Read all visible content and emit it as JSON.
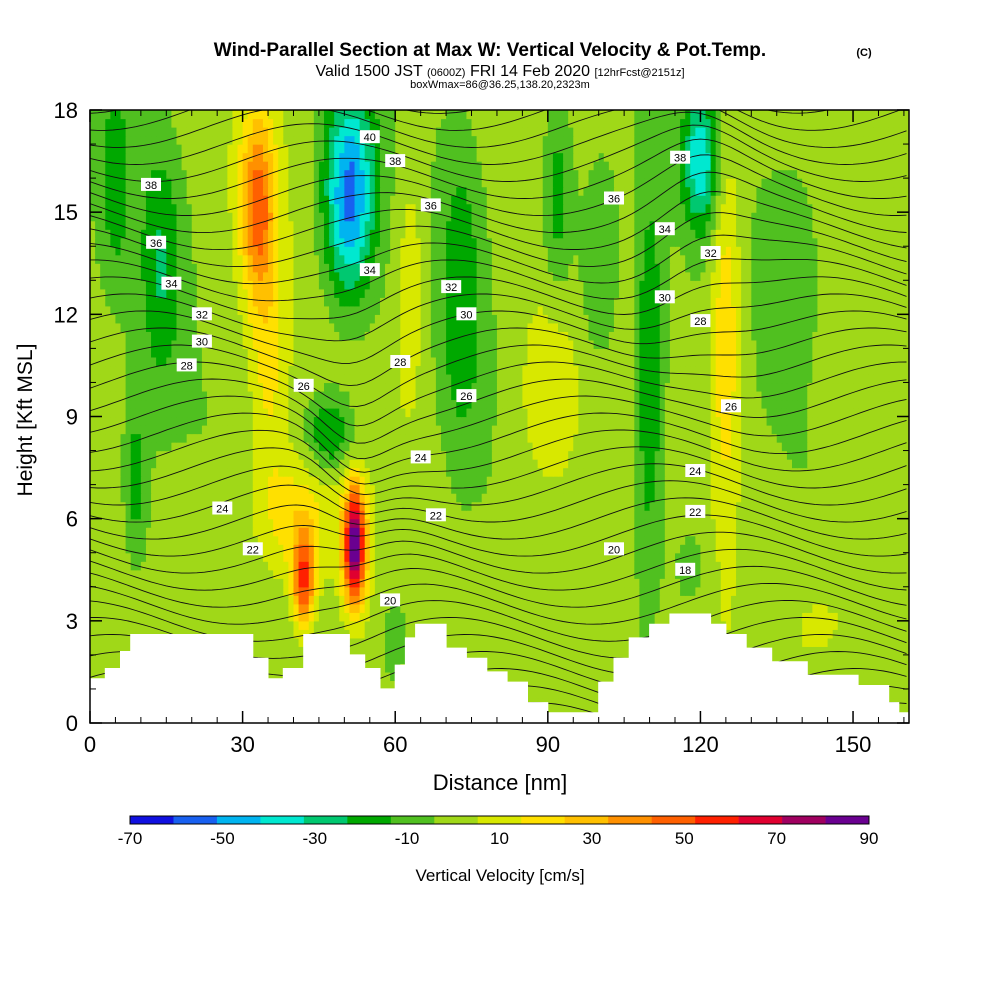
{
  "title": {
    "main": "Wind-Parallel Section at Max W: Vertical Velocity & Pot.Temp.",
    "copyright": "(C)",
    "valid_prefix": "Valid 1500 JST",
    "valid_utc": "(0600Z)",
    "valid_date": "FRI 14 Feb 2020",
    "forecast": "[12hrFcst@2151z]",
    "box": "boxWmax=86@36.25,138.20,2323m"
  },
  "colorbar": {
    "label": "Vertical Velocity [cm/s]",
    "tick_labels": [
      "-70",
      "-50",
      "-30",
      "-10",
      "10",
      "30",
      "50",
      "70",
      "90"
    ],
    "bounds": [
      -70,
      -60,
      -50,
      -40,
      -30,
      -20,
      -10,
      0,
      10,
      20,
      30,
      40,
      50,
      60,
      70,
      80,
      90
    ],
    "colors": [
      "#1010e0",
      "#1860f0",
      "#00b4f0",
      "#00e8d0",
      "#00c870",
      "#00a800",
      "#50c020",
      "#a0d818",
      "#d8e800",
      "#ffe000",
      "#ffc000",
      "#ff9000",
      "#ff6000",
      "#ff2000",
      "#e00030",
      "#a00060",
      "#6a0090"
    ]
  },
  "chart_data": {
    "type": "heatmap",
    "title": "Wind-Parallel Section at Max W: Vertical Velocity & Pot.Temp.",
    "xlabel": "Distance [nm]",
    "ylabel": "Height [Kft MSL]",
    "xlim": [
      0,
      161
    ],
    "ylim": [
      0,
      18
    ],
    "xticks": [
      0,
      30,
      60,
      90,
      120,
      150
    ],
    "yticks": [
      0,
      3,
      6,
      9,
      12,
      15,
      18
    ],
    "fill_variable": "vertical velocity (cm/s)",
    "contour_variable": "potential temperature (C)",
    "max_w": 86,
    "updraft_cores": [
      {
        "x": 52,
        "y": 5.0,
        "w": 86
      },
      {
        "x": 42,
        "y": 4.2,
        "w": 60
      },
      {
        "x": 33,
        "y": 15.5,
        "w": 45
      },
      {
        "x": 125,
        "y": 12.0,
        "w": 25
      }
    ],
    "downdraft_cores": [
      {
        "x": 51,
        "y": 15.5,
        "w": -45
      },
      {
        "x": 120,
        "y": 16.5,
        "w": -30
      },
      {
        "x": 75,
        "y": 14.0,
        "w": -20
      }
    ],
    "theta_labels": [
      {
        "text": "40",
        "x": 55,
        "y": 17.2
      },
      {
        "text": "38",
        "x": 12,
        "y": 15.8
      },
      {
        "text": "38",
        "x": 60,
        "y": 16.5
      },
      {
        "text": "38",
        "x": 116,
        "y": 16.6
      },
      {
        "text": "36",
        "x": 13,
        "y": 14.1
      },
      {
        "text": "36",
        "x": 67,
        "y": 15.2
      },
      {
        "text": "36",
        "x": 103,
        "y": 15.4
      },
      {
        "text": "34",
        "x": 16,
        "y": 12.9
      },
      {
        "text": "34",
        "x": 55,
        "y": 13.3
      },
      {
        "text": "34",
        "x": 113,
        "y": 14.5
      },
      {
        "text": "32",
        "x": 22,
        "y": 12.0
      },
      {
        "text": "32",
        "x": 71,
        "y": 12.8
      },
      {
        "text": "32",
        "x": 122,
        "y": 13.8
      },
      {
        "text": "30",
        "x": 22,
        "y": 11.2
      },
      {
        "text": "30",
        "x": 74,
        "y": 12.0
      },
      {
        "text": "30",
        "x": 113,
        "y": 12.5
      },
      {
        "text": "28",
        "x": 19,
        "y": 10.5
      },
      {
        "text": "28",
        "x": 61,
        "y": 10.6
      },
      {
        "text": "28",
        "x": 120,
        "y": 11.8
      },
      {
        "text": "26",
        "x": 42,
        "y": 9.9
      },
      {
        "text": "26",
        "x": 74,
        "y": 9.6
      },
      {
        "text": "26",
        "x": 126,
        "y": 9.3
      },
      {
        "text": "24",
        "x": 26,
        "y": 6.3
      },
      {
        "text": "24",
        "x": 65,
        "y": 7.8
      },
      {
        "text": "24",
        "x": 119,
        "y": 7.4
      },
      {
        "text": "22",
        "x": 32,
        "y": 5.1
      },
      {
        "text": "22",
        "x": 68,
        "y": 6.1
      },
      {
        "text": "22",
        "x": 119,
        "y": 6.2
      },
      {
        "text": "20",
        "x": 59,
        "y": 3.6
      },
      {
        "text": "20",
        "x": 103,
        "y": 5.1
      },
      {
        "text": "18",
        "x": 117,
        "y": 4.5
      }
    ],
    "terrain": [
      [
        0,
        1.3
      ],
      [
        3,
        1.3
      ],
      [
        3,
        1.6
      ],
      [
        6,
        1.6
      ],
      [
        6,
        2.1
      ],
      [
        8,
        2.1
      ],
      [
        8,
        2.6
      ],
      [
        32,
        2.6
      ],
      [
        32,
        1.9
      ],
      [
        35,
        1.9
      ],
      [
        35,
        1.3
      ],
      [
        38,
        1.3
      ],
      [
        38,
        1.6
      ],
      [
        42,
        1.6
      ],
      [
        42,
        2.6
      ],
      [
        51,
        2.6
      ],
      [
        51,
        2.0
      ],
      [
        54,
        2.0
      ],
      [
        54,
        1.6
      ],
      [
        57,
        1.6
      ],
      [
        57,
        1.0
      ],
      [
        60,
        1.0
      ],
      [
        60,
        1.7
      ],
      [
        62,
        1.7
      ],
      [
        62,
        2.5
      ],
      [
        64,
        2.5
      ],
      [
        64,
        2.9
      ],
      [
        70,
        2.9
      ],
      [
        70,
        2.2
      ],
      [
        74,
        2.2
      ],
      [
        74,
        1.9
      ],
      [
        78,
        1.9
      ],
      [
        78,
        1.5
      ],
      [
        82,
        1.5
      ],
      [
        82,
        1.2
      ],
      [
        86,
        1.2
      ],
      [
        86,
        0.6
      ],
      [
        90,
        0.6
      ],
      [
        90,
        0.3
      ],
      [
        100,
        0.3
      ],
      [
        100,
        1.2
      ],
      [
        103,
        1.2
      ],
      [
        103,
        1.9
      ],
      [
        106,
        1.9
      ],
      [
        106,
        2.5
      ],
      [
        110,
        2.5
      ],
      [
        110,
        2.9
      ],
      [
        114,
        2.9
      ],
      [
        114,
        3.2
      ],
      [
        122,
        3.2
      ],
      [
        122,
        2.9
      ],
      [
        125,
        2.9
      ],
      [
        125,
        2.6
      ],
      [
        129,
        2.6
      ],
      [
        129,
        2.2
      ],
      [
        134,
        2.2
      ],
      [
        134,
        1.8
      ],
      [
        141,
        1.8
      ],
      [
        141,
        1.4
      ],
      [
        151,
        1.4
      ],
      [
        151,
        1.1
      ],
      [
        157,
        1.1
      ],
      [
        157,
        0.6
      ],
      [
        159,
        0.6
      ],
      [
        159,
        0.3
      ],
      [
        161,
        0.3
      ]
    ]
  }
}
